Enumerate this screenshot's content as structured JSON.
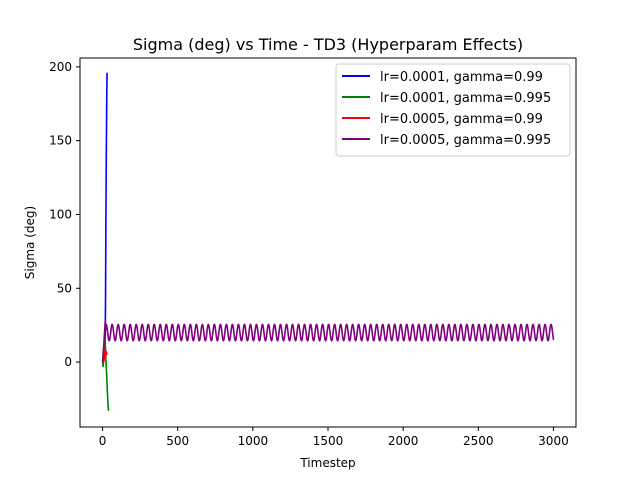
{
  "chart_data": {
    "type": "line",
    "title": "Sigma (deg) vs Time - TD3 (Hyperparam Effects)",
    "xlabel": "Timestep",
    "ylabel": "Sigma (deg)",
    "xlim": [
      -150,
      3150
    ],
    "ylim": [
      -44,
      206
    ],
    "xticks": [
      0,
      500,
      1000,
      1500,
      2000,
      2500,
      3000
    ],
    "yticks": [
      0,
      50,
      100,
      150,
      200
    ],
    "grid": false,
    "legend_position": "top-right",
    "series": [
      {
        "name": "lr=0.0001, gamma=0.99",
        "color": "#0000ff",
        "x": [
          0,
          5,
          10,
          15,
          18,
          20,
          22,
          25,
          28,
          30
        ],
        "y": [
          0,
          1,
          3,
          8,
          20,
          45,
          90,
          140,
          180,
          196
        ]
      },
      {
        "name": "lr=0.0001, gamma=0.995",
        "color": "#008000",
        "x": [
          0,
          4,
          8,
          12,
          16,
          20,
          24,
          28,
          32,
          36,
          40
        ],
        "y": [
          0,
          -3,
          2,
          12,
          18,
          8,
          -2,
          -10,
          -20,
          -28,
          -33
        ]
      },
      {
        "name": "lr=0.0005, gamma=0.99",
        "color": "#ff0000",
        "x": [
          0,
          5,
          10,
          15,
          20,
          25,
          30
        ],
        "y": [
          0,
          4,
          1,
          9,
          3,
          7,
          5
        ]
      },
      {
        "name": "lr=0.0005, gamma=0.995",
        "color": "#800080",
        "x0": 0,
        "x_end": 3000,
        "start_x": [
          0,
          6,
          12,
          18,
          24
        ],
        "start_y": [
          0,
          8,
          18,
          28,
          22
        ],
        "oscillation": {
          "center": 20,
          "amplitude": 5.5,
          "period": 40,
          "from_x": 24
        },
        "end_y": 15
      }
    ]
  }
}
